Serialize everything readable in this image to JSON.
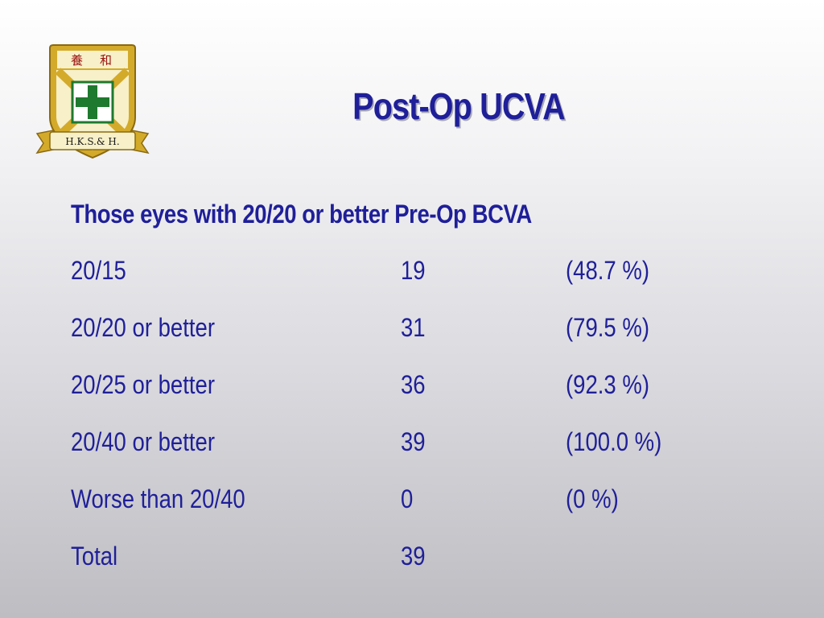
{
  "logo": {
    "top_text": "養 和",
    "bottom_text": "H.K.S.& H.",
    "colors": {
      "gold": "#d4aa2a",
      "green": "#1e7a2e",
      "cream": "#f7f0c8"
    }
  },
  "title": "Post-Op UCVA",
  "subtitle": "Those eyes with 20/20 or better Pre-Op BCVA",
  "rows": [
    {
      "label": "20/15",
      "count": "19",
      "percent": "(48.7 %)"
    },
    {
      "label": "20/20 or better",
      "count": "31",
      "percent": "(79.5 %)"
    },
    {
      "label": "20/25 or better",
      "count": "36",
      "percent": "(92.3 %)"
    },
    {
      "label": "20/40 or better",
      "count": "39",
      "percent": "(100.0 %)"
    },
    {
      "label": "Worse than 20/40",
      "count": "0",
      "percent": "(0 %)"
    },
    {
      "label": "Total",
      "count": "39",
      "percent": ""
    }
  ],
  "colors": {
    "text": "#1f1f99"
  }
}
